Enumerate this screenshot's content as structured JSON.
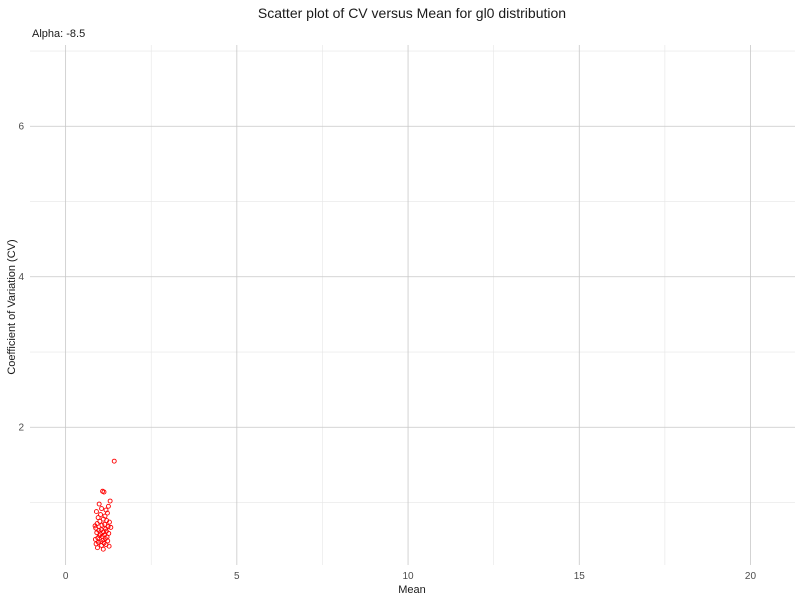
{
  "chart_data": {
    "type": "scatter",
    "title": "Scatter plot of CV versus Mean for gl0 distribution",
    "subtitle": "Alpha: -8.5",
    "xlabel": "Mean",
    "ylabel": "Coefficient of Variation (CV)",
    "xlim": [
      -1.04,
      21.3
    ],
    "ylim": [
      0.17,
      7.08
    ],
    "x_ticks": [
      0,
      5,
      10,
      15,
      20
    ],
    "x_tick_labels": [
      "0",
      "5",
      "10",
      "15",
      "20"
    ],
    "x_minor": [
      2.5,
      7.5,
      12.5,
      17.5
    ],
    "y_ticks": [
      2,
      4,
      6
    ],
    "y_tick_labels": [
      "2",
      "4",
      "6"
    ],
    "y_minor": [
      1,
      3,
      5,
      7
    ],
    "grid": true,
    "legend": "none",
    "point_color": "#ff0000",
    "points": {
      "x": [
        1.42,
        1.08,
        1.12,
        1.3,
        0.98,
        1.25,
        1.05,
        1.18,
        0.9,
        1.22,
        1.02,
        1.15,
        0.95,
        1.1,
        1.2,
        1.0,
        1.28,
        0.92,
        1.14,
        1.06,
        0.86,
        1.24,
        1.32,
        0.88,
        1.17,
        1.04,
        0.97,
        1.19,
        1.11,
        0.91,
        1.26,
        1.01,
        1.13,
        0.99,
        1.07,
        1.21,
        0.94,
        1.16,
        0.87,
        1.09,
        1.23,
        1.03,
        0.96,
        1.12,
        0.89,
        1.18,
        1.05,
        1.27,
        0.93,
        1.1
      ],
      "y": [
        1.55,
        1.15,
        1.14,
        1.02,
        0.98,
        0.95,
        0.92,
        0.9,
        0.88,
        0.86,
        0.84,
        0.82,
        0.8,
        0.78,
        0.76,
        0.75,
        0.74,
        0.72,
        0.71,
        0.7,
        0.69,
        0.68,
        0.67,
        0.66,
        0.65,
        0.64,
        0.63,
        0.62,
        0.61,
        0.6,
        0.59,
        0.58,
        0.57,
        0.56,
        0.55,
        0.54,
        0.53,
        0.52,
        0.51,
        0.5,
        0.49,
        0.48,
        0.47,
        0.46,
        0.45,
        0.44,
        0.43,
        0.42,
        0.4,
        0.38
      ]
    }
  }
}
